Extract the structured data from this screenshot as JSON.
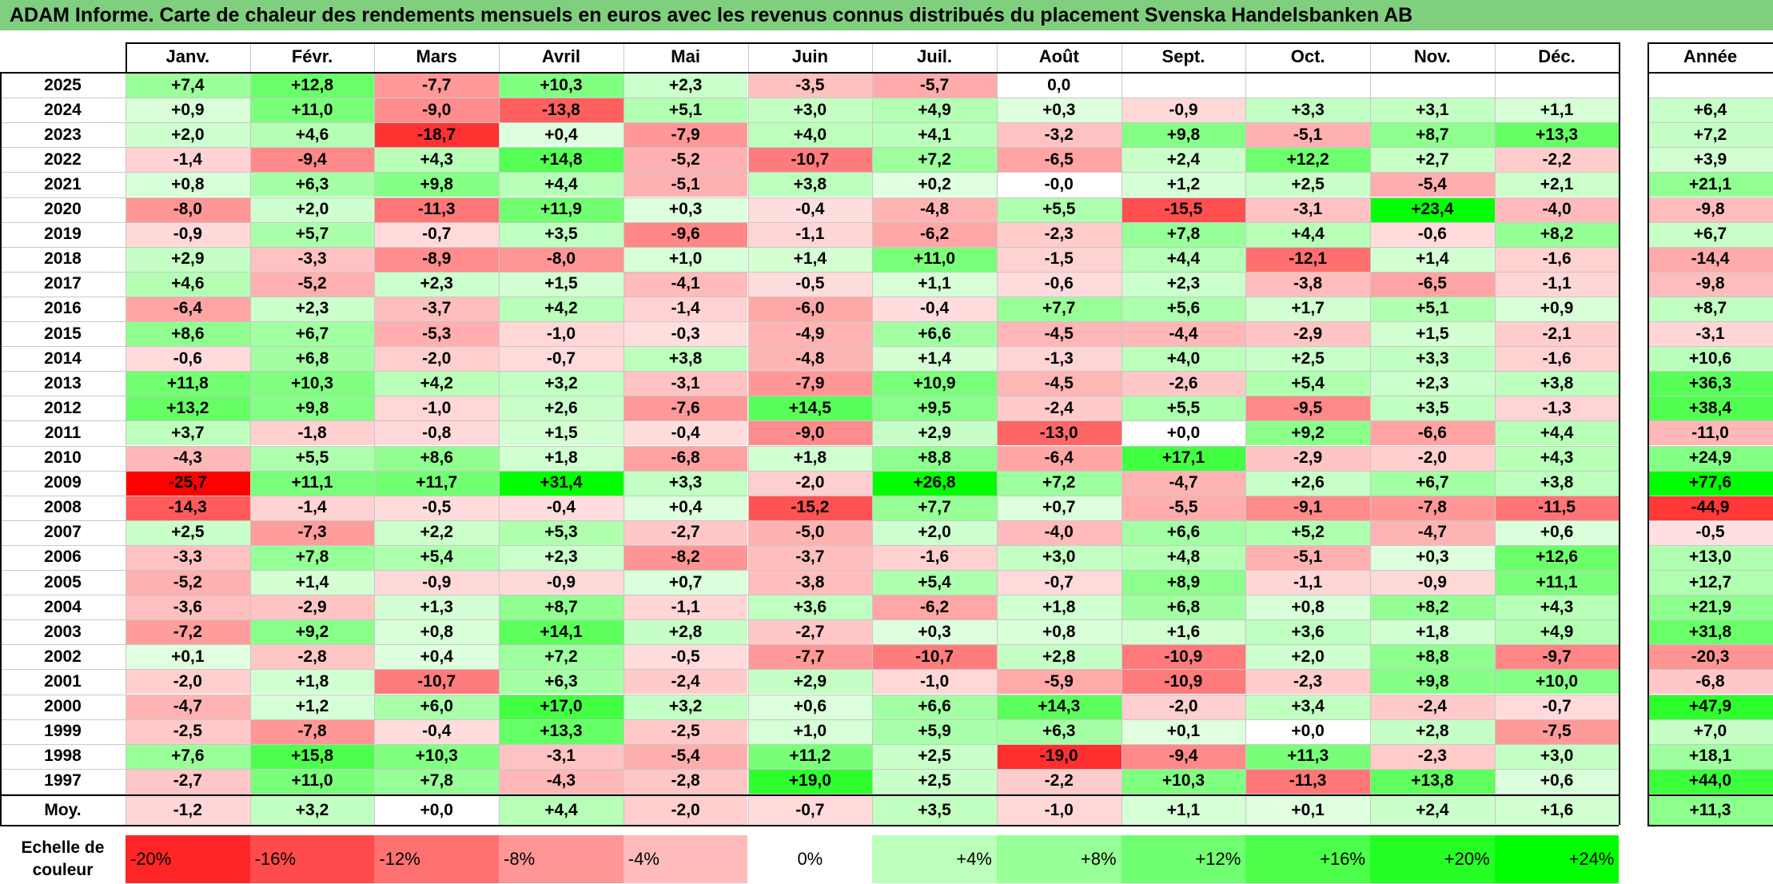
{
  "title": "ADAM Informe. Carte de chaleur des rendements mensuels en euros avec les revenus connus distribués du placement Svenska Handelsbanken AB",
  "chart_data": {
    "type": "heatmap",
    "title": "ADAM Informe. Carte de chaleur des rendements mensuels en euros avec les revenus connus distribués du placement Svenska Handelsbanken AB",
    "months": [
      "Janv.",
      "Févr.",
      "Mars",
      "Avril",
      "Mai",
      "Juin",
      "Juil.",
      "Août",
      "Sept.",
      "Oct.",
      "Nov.",
      "Déc."
    ],
    "annual_header": "Année",
    "rows": [
      {
        "year": "2025",
        "values": [
          "+7,4",
          "+12,8",
          "-7,7",
          "+10,3",
          "+2,3",
          "-3,5",
          "-5,7",
          "0,0",
          "",
          "",
          "",
          ""
        ],
        "annual": ""
      },
      {
        "year": "2024",
        "values": [
          "+0,9",
          "+11,0",
          "-9,0",
          "-13,8",
          "+5,1",
          "+3,0",
          "+4,9",
          "+0,3",
          "-0,9",
          "+3,3",
          "+3,1",
          "+1,1"
        ],
        "annual": "+6,4"
      },
      {
        "year": "2023",
        "values": [
          "+2,0",
          "+4,6",
          "-18,7",
          "+0,4",
          "-7,9",
          "+4,0",
          "+4,1",
          "-3,2",
          "+9,8",
          "-5,1",
          "+8,7",
          "+13,3"
        ],
        "annual": "+7,2"
      },
      {
        "year": "2022",
        "values": [
          "-1,4",
          "-9,4",
          "+4,3",
          "+14,8",
          "-5,2",
          "-10,7",
          "+7,2",
          "-6,5",
          "+2,4",
          "+12,2",
          "+2,7",
          "-2,2"
        ],
        "annual": "+3,9"
      },
      {
        "year": "2021",
        "values": [
          "+0,8",
          "+6,3",
          "+9,8",
          "+4,4",
          "-5,1",
          "+3,8",
          "+0,2",
          "-0,0",
          "+1,2",
          "+2,5",
          "-5,4",
          "+2,1"
        ],
        "annual": "+21,1"
      },
      {
        "year": "2020",
        "values": [
          "-8,0",
          "+2,0",
          "-11,3",
          "+11,9",
          "+0,3",
          "-0,4",
          "-4,8",
          "+5,5",
          "-15,5",
          "-3,1",
          "+23,4",
          "-4,0"
        ],
        "annual": "-9,8"
      },
      {
        "year": "2019",
        "values": [
          "-0,9",
          "+5,7",
          "-0,7",
          "+3,5",
          "-9,6",
          "-1,1",
          "-6,2",
          "-2,3",
          "+7,8",
          "+4,4",
          "-0,6",
          "+8,2"
        ],
        "annual": "+6,7"
      },
      {
        "year": "2018",
        "values": [
          "+2,9",
          "-3,3",
          "-8,9",
          "-8,0",
          "+1,0",
          "+1,4",
          "+11,0",
          "-1,5",
          "+4,4",
          "-12,1",
          "+1,4",
          "-1,6"
        ],
        "annual": "-14,4"
      },
      {
        "year": "2017",
        "values": [
          "+4,6",
          "-5,2",
          "+2,3",
          "+1,5",
          "-4,1",
          "-0,5",
          "+1,1",
          "-0,6",
          "+2,3",
          "-3,8",
          "-6,5",
          "-1,1"
        ],
        "annual": "-9,8"
      },
      {
        "year": "2016",
        "values": [
          "-6,4",
          "+2,3",
          "-3,7",
          "+4,2",
          "-1,4",
          "-6,0",
          "-0,4",
          "+7,7",
          "+5,6",
          "+1,7",
          "+5,1",
          "+0,9"
        ],
        "annual": "+8,7"
      },
      {
        "year": "2015",
        "values": [
          "+8,6",
          "+6,7",
          "-5,3",
          "-1,0",
          "-0,3",
          "-4,9",
          "+6,6",
          "-4,5",
          "-4,4",
          "-2,9",
          "+1,5",
          "-2,1"
        ],
        "annual": "-3,1"
      },
      {
        "year": "2014",
        "values": [
          "-0,6",
          "+6,8",
          "-2,0",
          "-0,7",
          "+3,8",
          "-4,8",
          "+1,4",
          "-1,3",
          "+4,0",
          "+2,5",
          "+3,3",
          "-1,6"
        ],
        "annual": "+10,6"
      },
      {
        "year": "2013",
        "values": [
          "+11,8",
          "+10,3",
          "+4,2",
          "+3,2",
          "-3,1",
          "-7,9",
          "+10,9",
          "-4,5",
          "-2,6",
          "+5,4",
          "+2,3",
          "+3,8"
        ],
        "annual": "+36,3"
      },
      {
        "year": "2012",
        "values": [
          "+13,2",
          "+9,8",
          "-1,0",
          "+2,6",
          "-7,6",
          "+14,5",
          "+9,5",
          "-2,4",
          "+5,5",
          "-9,5",
          "+3,5",
          "-1,3"
        ],
        "annual": "+38,4"
      },
      {
        "year": "2011",
        "values": [
          "+3,7",
          "-1,8",
          "-0,8",
          "+1,5",
          "-0,4",
          "-9,0",
          "+2,9",
          "-13,0",
          "+0,0",
          "+9,2",
          "-6,6",
          "+4,4"
        ],
        "annual": "-11,0"
      },
      {
        "year": "2010",
        "values": [
          "-4,3",
          "+5,5",
          "+8,6",
          "+1,8",
          "-6,8",
          "+1,8",
          "+8,8",
          "-6,4",
          "+17,1",
          "-2,9",
          "-2,0",
          "+4,3"
        ],
        "annual": "+24,9"
      },
      {
        "year": "2009",
        "values": [
          "-25,7",
          "+11,1",
          "+11,7",
          "+31,4",
          "+3,3",
          "-2,0",
          "+26,8",
          "+7,2",
          "-4,7",
          "+2,6",
          "+6,7",
          "+3,8"
        ],
        "annual": "+77,6"
      },
      {
        "year": "2008",
        "values": [
          "-14,3",
          "-1,4",
          "-0,5",
          "-0,4",
          "+0,4",
          "-15,2",
          "+7,7",
          "+0,7",
          "-5,5",
          "-9,1",
          "-7,8",
          "-11,5"
        ],
        "annual": "-44,9"
      },
      {
        "year": "2007",
        "values": [
          "+2,5",
          "-7,3",
          "+2,2",
          "+5,3",
          "-2,7",
          "-5,0",
          "+2,0",
          "-4,0",
          "+6,6",
          "+5,2",
          "-4,7",
          "+0,6"
        ],
        "annual": "-0,5"
      },
      {
        "year": "2006",
        "values": [
          "-3,3",
          "+7,8",
          "+5,4",
          "+2,3",
          "-8,2",
          "-3,7",
          "-1,6",
          "+3,0",
          "+4,8",
          "-5,1",
          "+0,3",
          "+12,6"
        ],
        "annual": "+13,0"
      },
      {
        "year": "2005",
        "values": [
          "-5,2",
          "+1,4",
          "-0,9",
          "-0,9",
          "+0,7",
          "-3,8",
          "+5,4",
          "-0,7",
          "+8,9",
          "-1,1",
          "-0,9",
          "+11,1"
        ],
        "annual": "+12,7"
      },
      {
        "year": "2004",
        "values": [
          "-3,6",
          "-2,9",
          "+1,3",
          "+8,7",
          "-1,1",
          "+3,6",
          "-6,2",
          "+1,8",
          "+6,8",
          "+0,8",
          "+8,2",
          "+4,3"
        ],
        "annual": "+21,9"
      },
      {
        "year": "2003",
        "values": [
          "-7,2",
          "+9,2",
          "+0,8",
          "+14,1",
          "+2,8",
          "-2,7",
          "+0,3",
          "+0,8",
          "+1,6",
          "+3,6",
          "+1,8",
          "+4,9"
        ],
        "annual": "+31,8"
      },
      {
        "year": "2002",
        "values": [
          "+0,1",
          "-2,8",
          "+0,4",
          "+7,2",
          "-0,5",
          "-7,7",
          "-10,7",
          "+2,8",
          "-10,9",
          "+2,0",
          "+8,8",
          "-9,7"
        ],
        "annual": "-20,3"
      },
      {
        "year": "2001",
        "values": [
          "-2,0",
          "+1,8",
          "-10,7",
          "+6,3",
          "-2,4",
          "+2,9",
          "-1,0",
          "-5,9",
          "-10,9",
          "-2,3",
          "+9,8",
          "+10,0"
        ],
        "annual": "-6,8"
      },
      {
        "year": "2000",
        "values": [
          "-4,7",
          "+1,2",
          "+6,0",
          "+17,0",
          "+3,2",
          "+0,6",
          "+6,6",
          "+14,3",
          "-2,0",
          "+3,4",
          "-2,4",
          "-0,7"
        ],
        "annual": "+47,9"
      },
      {
        "year": "1999",
        "values": [
          "-2,5",
          "-7,8",
          "-0,4",
          "+13,3",
          "-2,5",
          "+1,0",
          "+5,9",
          "+6,3",
          "+0,1",
          "+0,0",
          "+2,8",
          "-7,5"
        ],
        "annual": "+7,0"
      },
      {
        "year": "1998",
        "values": [
          "+7,6",
          "+15,8",
          "+10,3",
          "-3,1",
          "-5,4",
          "+11,2",
          "+2,5",
          "-19,0",
          "-9,4",
          "+11,3",
          "-2,3",
          "+3,0"
        ],
        "annual": "+18,1"
      },
      {
        "year": "1997",
        "values": [
          "-2,7",
          "+11,0",
          "+7,8",
          "-4,3",
          "-2,8",
          "+19,0",
          "+2,5",
          "-2,2",
          "+10,3",
          "-11,3",
          "+13,8",
          "+0,6"
        ],
        "annual": "+44,0"
      }
    ],
    "average": {
      "label": "Moy.",
      "values": [
        "-1,2",
        "+3,2",
        "+0,0",
        "+4,4",
        "-2,0",
        "-0,7",
        "+3,5",
        "-1,0",
        "+1,1",
        "+0,1",
        "+2,4",
        "+1,6"
      ],
      "annual": "+11,3"
    },
    "scale": {
      "label": "Echelle de couleur",
      "steps": [
        "-20%",
        "-16%",
        "-12%",
        "-8%",
        "-4%",
        "0%",
        "+4%",
        "+8%",
        "+12%",
        "+16%",
        "+20%",
        "+24%"
      ]
    }
  },
  "colors": {
    "title_bg": "#7fcf7f",
    "negative_max": "#ff0000",
    "positive_max": "#00ff00",
    "neutral": "#ffffff"
  }
}
